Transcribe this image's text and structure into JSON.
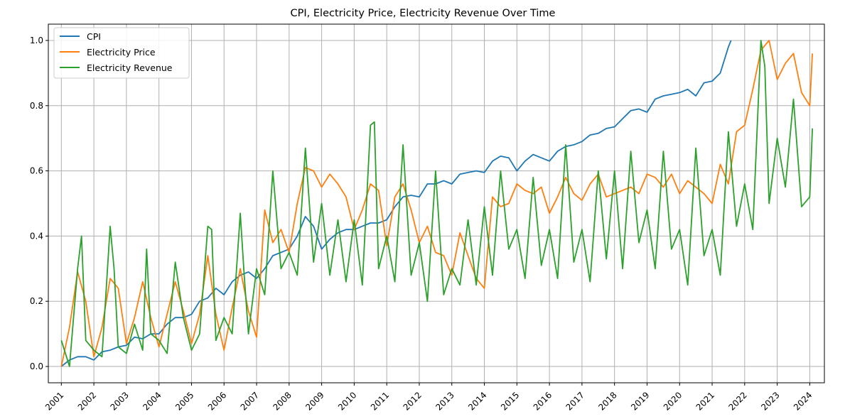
{
  "chart_data": {
    "type": "line",
    "title": "CPI, Electricity Price, Electricity Revenue Over Time",
    "xlabel": "",
    "ylabel": "",
    "x_tick_labels": [
      "2001",
      "2002",
      "2003",
      "2004",
      "2005",
      "2006",
      "2007",
      "2008",
      "2009",
      "2010",
      "2011",
      "2012",
      "2013",
      "2014",
      "2015",
      "2016",
      "2017",
      "2018",
      "2019",
      "2020",
      "2021",
      "2022",
      "2023",
      "2024"
    ],
    "y_tick_labels": [
      "0.0",
      "0.2",
      "0.4",
      "0.6",
      "0.8",
      "1.0"
    ],
    "xlim": [
      2000.6,
      2024.45
    ],
    "ylim": [
      -0.05,
      1.05
    ],
    "grid": true,
    "legend_position": "top-left",
    "colors": {
      "CPI": "#1f77b4",
      "Electricity Price": "#ff7f0e",
      "Electricity Revenue": "#2ca02c"
    },
    "series": [
      {
        "name": "CPI",
        "x": [
          2001.0,
          2001.25,
          2001.5,
          2001.75,
          2002.0,
          2002.25,
          2002.5,
          2002.75,
          2003.0,
          2003.25,
          2003.5,
          2003.75,
          2004.0,
          2004.25,
          2004.5,
          2004.75,
          2005.0,
          2005.25,
          2005.5,
          2005.75,
          2006.0,
          2006.25,
          2006.5,
          2006.75,
          2007.0,
          2007.25,
          2007.5,
          2007.75,
          2008.0,
          2008.25,
          2008.5,
          2008.75,
          2009.0,
          2009.25,
          2009.5,
          2009.75,
          2010.0,
          2010.25,
          2010.5,
          2010.75,
          2011.0,
          2011.25,
          2011.5,
          2011.75,
          2012.0,
          2012.25,
          2012.5,
          2012.75,
          2013.0,
          2013.25,
          2013.5,
          2013.75,
          2014.0,
          2014.25,
          2014.5,
          2014.75,
          2015.0,
          2015.25,
          2015.5,
          2015.75,
          2016.0,
          2016.25,
          2016.5,
          2016.75,
          2017.0,
          2017.25,
          2017.5,
          2017.75,
          2018.0,
          2018.25,
          2018.5,
          2018.75,
          2019.0,
          2019.25,
          2019.5,
          2019.75,
          2020.0,
          2020.25,
          2020.5,
          2020.75,
          2021.0,
          2021.25,
          2021.5,
          2021.58
        ],
        "values": [
          0.0,
          0.02,
          0.03,
          0.03,
          0.02,
          0.045,
          0.05,
          0.06,
          0.065,
          0.09,
          0.085,
          0.1,
          0.1,
          0.13,
          0.15,
          0.15,
          0.16,
          0.2,
          0.21,
          0.24,
          0.22,
          0.26,
          0.28,
          0.29,
          0.27,
          0.3,
          0.34,
          0.35,
          0.36,
          0.4,
          0.46,
          0.43,
          0.36,
          0.39,
          0.41,
          0.42,
          0.42,
          0.43,
          0.44,
          0.44,
          0.45,
          0.49,
          0.52,
          0.525,
          0.52,
          0.56,
          0.56,
          0.57,
          0.56,
          0.59,
          0.595,
          0.6,
          0.595,
          0.63,
          0.645,
          0.64,
          0.6,
          0.63,
          0.65,
          0.64,
          0.63,
          0.66,
          0.675,
          0.68,
          0.69,
          0.71,
          0.715,
          0.73,
          0.735,
          0.76,
          0.785,
          0.79,
          0.78,
          0.82,
          0.83,
          0.835,
          0.84,
          0.85,
          0.83,
          0.87,
          0.875,
          0.9,
          0.98,
          1.0
        ]
      },
      {
        "name": "Electricity Price",
        "x": [
          2001.0,
          2001.25,
          2001.5,
          2001.75,
          2002.0,
          2002.25,
          2002.5,
          2002.75,
          2003.0,
          2003.25,
          2003.5,
          2003.75,
          2004.0,
          2004.25,
          2004.5,
          2004.75,
          2005.0,
          2005.25,
          2005.5,
          2005.75,
          2006.0,
          2006.25,
          2006.5,
          2006.75,
          2007.0,
          2007.25,
          2007.5,
          2007.75,
          2008.0,
          2008.25,
          2008.5,
          2008.75,
          2009.0,
          2009.25,
          2009.5,
          2009.75,
          2010.0,
          2010.25,
          2010.5,
          2010.75,
          2011.0,
          2011.25,
          2011.5,
          2011.75,
          2012.0,
          2012.25,
          2012.5,
          2012.75,
          2013.0,
          2013.25,
          2013.5,
          2013.75,
          2014.0,
          2014.25,
          2014.5,
          2014.75,
          2015.0,
          2015.25,
          2015.5,
          2015.75,
          2016.0,
          2016.25,
          2016.5,
          2016.75,
          2017.0,
          2017.25,
          2017.5,
          2017.75,
          2018.0,
          2018.25,
          2018.5,
          2018.75,
          2019.0,
          2019.25,
          2019.5,
          2019.75,
          2020.0,
          2020.25,
          2020.5,
          2020.75,
          2021.0,
          2021.25,
          2021.5,
          2021.75,
          2022.0,
          2022.25,
          2022.5,
          2022.75,
          2023.0,
          2023.25,
          2023.5,
          2023.75,
          2024.0,
          2024.08
        ],
        "values": [
          0.0,
          0.12,
          0.29,
          0.2,
          0.03,
          0.12,
          0.27,
          0.24,
          0.07,
          0.15,
          0.26,
          0.15,
          0.06,
          0.16,
          0.26,
          0.17,
          0.07,
          0.16,
          0.34,
          0.16,
          0.05,
          0.18,
          0.3,
          0.17,
          0.09,
          0.48,
          0.38,
          0.42,
          0.35,
          0.5,
          0.61,
          0.6,
          0.55,
          0.59,
          0.56,
          0.52,
          0.42,
          0.48,
          0.56,
          0.54,
          0.37,
          0.52,
          0.56,
          0.48,
          0.38,
          0.43,
          0.35,
          0.34,
          0.28,
          0.41,
          0.34,
          0.27,
          0.24,
          0.52,
          0.49,
          0.5,
          0.56,
          0.54,
          0.53,
          0.55,
          0.47,
          0.52,
          0.58,
          0.53,
          0.51,
          0.56,
          0.59,
          0.52,
          0.53,
          0.54,
          0.55,
          0.53,
          0.59,
          0.58,
          0.55,
          0.59,
          0.53,
          0.57,
          0.55,
          0.53,
          0.5,
          0.62,
          0.56,
          0.72,
          0.74,
          0.85,
          0.97,
          1.0,
          0.88,
          0.93,
          0.96,
          0.84,
          0.8,
          0.96
        ]
      },
      {
        "name": "Electricity Revenue",
        "x": [
          2001.0,
          2001.25,
          2001.5,
          2001.62,
          2001.75,
          2002.0,
          2002.25,
          2002.5,
          2002.62,
          2002.75,
          2003.0,
          2003.25,
          2003.5,
          2003.62,
          2003.75,
          2004.0,
          2004.25,
          2004.5,
          2004.75,
          2005.0,
          2005.25,
          2005.5,
          2005.62,
          2005.75,
          2006.0,
          2006.25,
          2006.5,
          2006.62,
          2006.75,
          2007.0,
          2007.25,
          2007.5,
          2007.75,
          2008.0,
          2008.25,
          2008.5,
          2008.75,
          2009.0,
          2009.25,
          2009.5,
          2009.75,
          2010.0,
          2010.25,
          2010.5,
          2010.62,
          2010.75,
          2011.0,
          2011.25,
          2011.5,
          2011.75,
          2012.0,
          2012.25,
          2012.5,
          2012.75,
          2013.0,
          2013.25,
          2013.5,
          2013.75,
          2014.0,
          2014.25,
          2014.5,
          2014.75,
          2015.0,
          2015.25,
          2015.5,
          2015.75,
          2016.0,
          2016.25,
          2016.5,
          2016.75,
          2017.0,
          2017.25,
          2017.5,
          2017.75,
          2018.0,
          2018.25,
          2018.5,
          2018.75,
          2019.0,
          2019.25,
          2019.5,
          2019.75,
          2020.0,
          2020.25,
          2020.5,
          2020.75,
          2021.0,
          2021.25,
          2021.5,
          2021.75,
          2022.0,
          2022.25,
          2022.5,
          2022.62,
          2022.75,
          2023.0,
          2023.25,
          2023.5,
          2023.75,
          2024.0,
          2024.08
        ],
        "values": [
          0.08,
          0.0,
          0.3,
          0.4,
          0.08,
          0.05,
          0.03,
          0.43,
          0.3,
          0.06,
          0.04,
          0.13,
          0.05,
          0.36,
          0.1,
          0.08,
          0.04,
          0.32,
          0.15,
          0.05,
          0.1,
          0.43,
          0.42,
          0.08,
          0.15,
          0.1,
          0.47,
          0.28,
          0.1,
          0.3,
          0.22,
          0.6,
          0.3,
          0.35,
          0.28,
          0.67,
          0.32,
          0.5,
          0.28,
          0.45,
          0.26,
          0.45,
          0.25,
          0.74,
          0.75,
          0.3,
          0.4,
          0.26,
          0.68,
          0.28,
          0.38,
          0.2,
          0.6,
          0.22,
          0.3,
          0.25,
          0.45,
          0.25,
          0.49,
          0.28,
          0.6,
          0.36,
          0.42,
          0.27,
          0.58,
          0.31,
          0.42,
          0.27,
          0.68,
          0.32,
          0.42,
          0.26,
          0.6,
          0.33,
          0.6,
          0.3,
          0.66,
          0.38,
          0.48,
          0.3,
          0.66,
          0.36,
          0.42,
          0.25,
          0.67,
          0.34,
          0.42,
          0.28,
          0.72,
          0.43,
          0.56,
          0.42,
          1.0,
          0.92,
          0.5,
          0.7,
          0.55,
          0.82,
          0.49,
          0.52,
          0.73
        ]
      }
    ]
  }
}
